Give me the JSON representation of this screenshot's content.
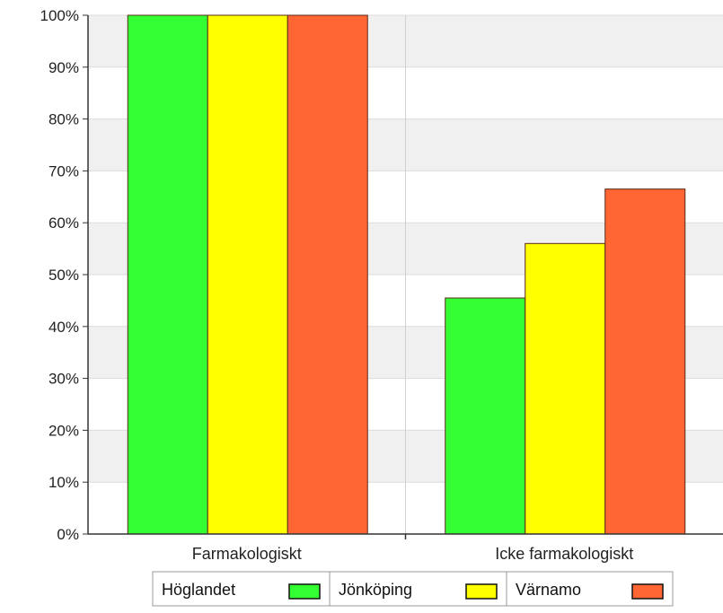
{
  "chart_data": {
    "type": "bar",
    "categories": [
      "Farmakologiskt",
      "Icke farmakologiskt"
    ],
    "series": [
      {
        "name": "Höglandet",
        "values": [
          100,
          45.5
        ],
        "color": "#33ff33"
      },
      {
        "name": "Jönköping",
        "values": [
          100,
          56
        ],
        "color": "#ffff00"
      },
      {
        "name": "Värnamo",
        "values": [
          100,
          66.5
        ],
        "color": "#ff6633"
      }
    ],
    "yticks": [
      "0%",
      "10%",
      "20%",
      "30%",
      "40%",
      "50%",
      "60%",
      "70%",
      "80%",
      "90%",
      "100%"
    ],
    "ylim": [
      0,
      100
    ],
    "grid": true,
    "legend_position": "bottom"
  }
}
